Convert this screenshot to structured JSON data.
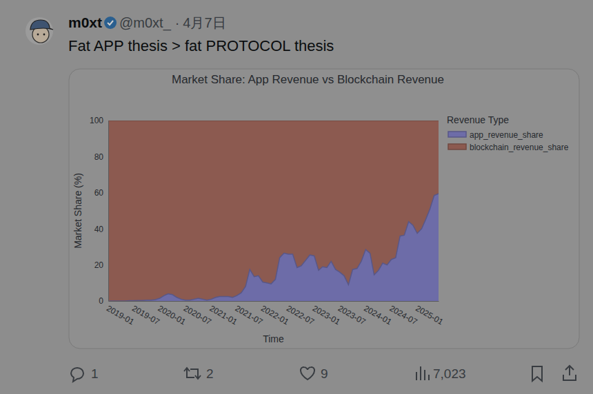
{
  "post": {
    "author": "m0xt",
    "handle": "@m0xt_",
    "separator": "·",
    "date": "4月7日",
    "text": "Fat APP thesis > fat PROTOCOL thesis",
    "replies": 1,
    "reposts": 2,
    "likes": 9,
    "views": "7,023"
  },
  "chart_data": {
    "type": "area",
    "stacked": true,
    "title": "Market Share: App Revenue vs Blockchain Revenue",
    "x_label": "Time",
    "y_label": "Market Share (%)",
    "legend": "right",
    "legend_title": "Revenue Type",
    "grid": false,
    "x": [
      "2019-01",
      "2019-02",
      "2019-03",
      "2019-04",
      "2019-05",
      "2019-06",
      "2019-07",
      "2019-08",
      "2019-09",
      "2019-10",
      "2019-11",
      "2019-12",
      "2020-01",
      "2020-02",
      "2020-03",
      "2020-04",
      "2020-05",
      "2020-06",
      "2020-07",
      "2020-08",
      "2020-09",
      "2020-10",
      "2020-11",
      "2020-12",
      "2021-01",
      "2021-02",
      "2021-03",
      "2021-04",
      "2021-05",
      "2021-06",
      "2021-07",
      "2021-08",
      "2021-09",
      "2021-10",
      "2021-11",
      "2021-12",
      "2022-01",
      "2022-02",
      "2022-03",
      "2022-04",
      "2022-05",
      "2022-06",
      "2022-07",
      "2022-08",
      "2022-09",
      "2022-10",
      "2022-11",
      "2022-12",
      "2023-01",
      "2023-02",
      "2023-03",
      "2023-04",
      "2023-05",
      "2023-06",
      "2023-07",
      "2023-08",
      "2023-09",
      "2023-10",
      "2023-11",
      "2023-12",
      "2024-01",
      "2024-02",
      "2024-03",
      "2024-04",
      "2024-05",
      "2024-06",
      "2024-07",
      "2024-08",
      "2024-09",
      "2024-10",
      "2024-11",
      "2024-12",
      "2025-01",
      "2025-02",
      "2025-03",
      "2025-04",
      "2025-05",
      "2025-06"
    ],
    "xlim": [
      "2019-01",
      "2025-06"
    ],
    "xticks": [
      "2019-01",
      "2019-07",
      "2020-01",
      "2020-07",
      "2021-01",
      "2021-07",
      "2022-01",
      "2022-07",
      "2023-01",
      "2023-07",
      "2024-01",
      "2024-07",
      "2025-01"
    ],
    "ylim": [
      0,
      100
    ],
    "yticks": [
      0,
      20,
      40,
      60,
      80,
      100
    ],
    "series": [
      {
        "name": "app_revenue_share",
        "color": "#6d6ca8",
        "values": [
          0,
          0,
          0,
          0,
          0,
          0.2,
          0.2,
          0.3,
          0.3,
          0.5,
          0.5,
          0.8,
          1.5,
          3,
          4,
          3.5,
          2,
          1,
          0.5,
          0.5,
          1,
          1.5,
          1,
          0.5,
          1,
          2,
          2.5,
          2.5,
          2.5,
          2,
          3,
          4.5,
          8,
          17.5,
          13.5,
          14,
          10.5,
          10,
          9.5,
          12,
          24,
          26.5,
          26,
          26,
          18.5,
          19.5,
          22.5,
          25.5,
          25,
          17,
          19,
          18.5,
          22,
          17.5,
          16,
          14,
          9,
          17.5,
          18,
          22,
          28.5,
          26.5,
          14.5,
          17,
          21,
          20,
          23,
          24,
          36,
          36.5,
          44,
          42,
          37.5,
          40,
          45,
          51,
          58.5,
          59.5
        ]
      },
      {
        "name": "blockchain_revenue_share",
        "color": "#8c5a50",
        "values": [
          100,
          100,
          100,
          100,
          100,
          99.8,
          99.8,
          99.7,
          99.7,
          99.5,
          99.5,
          99.2,
          98.5,
          97,
          96,
          96.5,
          98,
          99,
          99.5,
          99.5,
          99,
          98.5,
          99,
          99.5,
          99,
          98,
          97.5,
          97.5,
          97.5,
          98,
          97,
          95.5,
          92,
          82.5,
          86.5,
          86,
          89.5,
          90,
          90.5,
          88,
          76,
          73.5,
          74,
          74,
          81.5,
          80.5,
          77.5,
          74.5,
          75,
          83,
          81,
          81.5,
          78,
          82.5,
          84,
          86,
          91,
          82.5,
          82,
          78,
          71.5,
          73.5,
          85.5,
          83,
          79,
          80,
          77,
          76,
          64,
          63.5,
          56,
          58,
          62.5,
          60,
          55,
          49,
          41.5,
          40.5
        ]
      }
    ]
  }
}
